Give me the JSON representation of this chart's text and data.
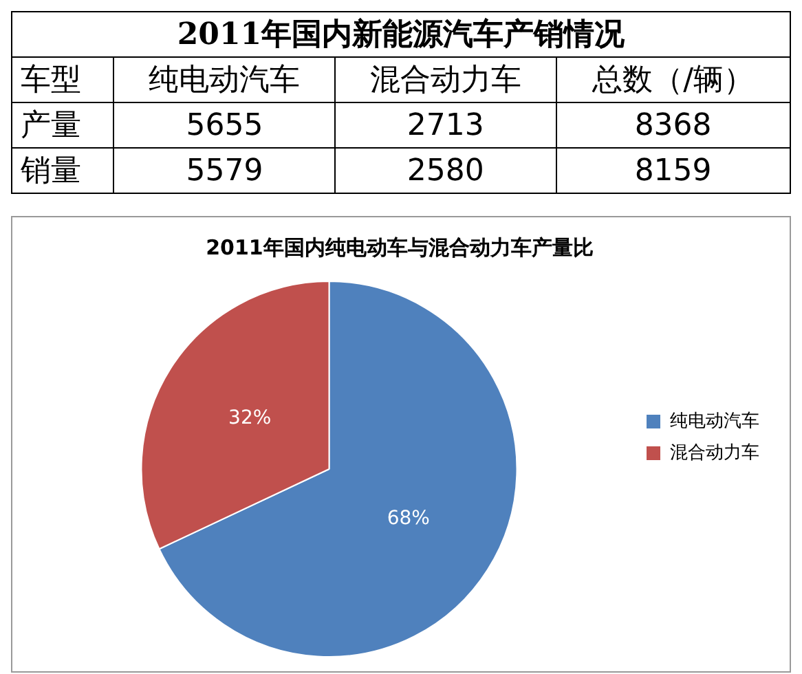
{
  "chart_data": [
    {
      "type": "heatmap",
      "title": "2011年国内新能源汽车产销情况",
      "ylabel": "车型",
      "categories": [
        "纯电动汽车",
        "混合动力车",
        "总数（/辆）"
      ],
      "y_categories": [
        "产量",
        "销量"
      ],
      "cells": [
        [
          5655,
          2713,
          8368
        ],
        [
          5579,
          2580,
          8159
        ]
      ],
      "data_labels": true
    },
    {
      "type": "pie",
      "title": "2011年国内纯电动车与混合动力车产量比",
      "categories": [
        "纯电动汽车",
        "混合动力车"
      ],
      "values": [
        68,
        32
      ],
      "colors": [
        "#4f81bd",
        "#c0504d"
      ],
      "value_labels": [
        "68%",
        "32%"
      ],
      "legend": "right"
    }
  ]
}
